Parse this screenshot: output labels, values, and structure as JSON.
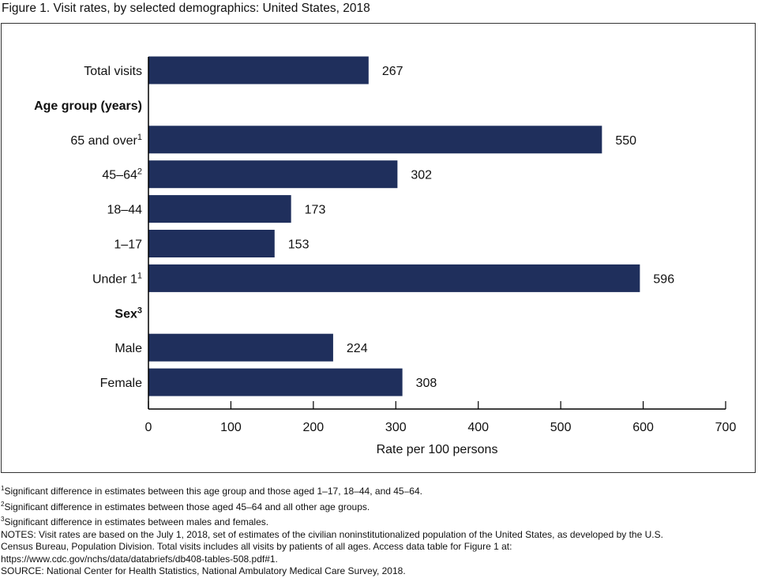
{
  "title": "Figure 1. Visit rates, by selected demographics: United States, 2018",
  "colors": {
    "bar": "#1f2f5c",
    "axis": "#000000",
    "text": "#111111",
    "frame": "#333333"
  },
  "chart_data": {
    "type": "bar",
    "orientation": "horizontal",
    "title": "Figure 1. Visit rates, by selected demographics: United States, 2018",
    "xlabel": "Rate per 100 persons",
    "ylabel": "",
    "xlim": [
      0,
      700
    ],
    "xticks": [
      0,
      100,
      200,
      300,
      400,
      500,
      600,
      700
    ],
    "grid": false,
    "rows": [
      {
        "kind": "bar",
        "label": "Total visits",
        "sup": "",
        "value": 267
      },
      {
        "kind": "heading",
        "label": "Age group (years)",
        "sup": ""
      },
      {
        "kind": "bar",
        "label": "65 and over",
        "sup": "1",
        "value": 550
      },
      {
        "kind": "bar",
        "label": "45–64",
        "sup": "2",
        "value": 302
      },
      {
        "kind": "bar",
        "label": "18–44",
        "sup": "",
        "value": 173
      },
      {
        "kind": "bar",
        "label": "1–17",
        "sup": "",
        "value": 153
      },
      {
        "kind": "bar",
        "label": "Under 1",
        "sup": "1",
        "value": 596
      },
      {
        "kind": "heading",
        "label": "Sex",
        "sup": "3"
      },
      {
        "kind": "bar",
        "label": "Male",
        "sup": "",
        "value": 224
      },
      {
        "kind": "bar",
        "label": "Female",
        "sup": "",
        "value": 308
      }
    ]
  },
  "footnotes": [
    {
      "sup": "1",
      "text": "Significant difference in estimates between this age group and those aged 1–17, 18–44, and 45–64."
    },
    {
      "sup": "2",
      "text": "Significant difference in estimates between those aged 45–64 and all other age groups."
    },
    {
      "sup": "3",
      "text": "Significant difference in estimates between males and females."
    }
  ],
  "notes": [
    "NOTES: Visit rates are based on the July 1, 2018, set of estimates of the civilian noninstitutionalized population of the United States, as developed by the U.S.",
    "Census Bureau, Population Division. Total visits includes all visits by patients of all ages. Access data table for Figure 1 at:",
    "https://www.cdc.gov/nchs/data/databriefs/db408-tables-508.pdf#1."
  ],
  "source": "SOURCE: National Center for Health Statistics, National Ambulatory Medical Care Survey, 2018."
}
